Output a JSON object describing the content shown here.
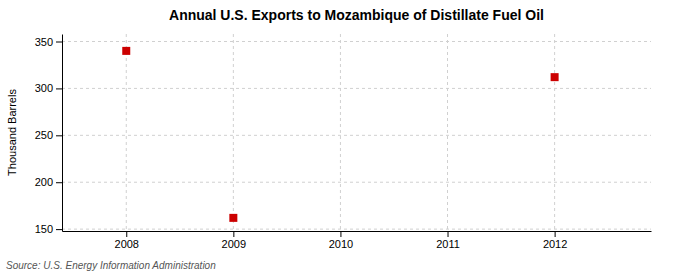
{
  "chart_data": {
    "type": "scatter",
    "title": "Annual U.S. Exports to Mozambique of Distillate Fuel Oil",
    "ylabel": "Thousand Barrels",
    "source": "Source: U.S. Energy Information Administration",
    "x": [
      2008,
      2009,
      2012
    ],
    "values": [
      340,
      162,
      312
    ],
    "xlim": [
      2007.4,
      2012.9
    ],
    "ylim": [
      148,
      358
    ],
    "xticks": [
      2008,
      2009,
      2010,
      2011,
      2012
    ],
    "yticks": [
      150,
      200,
      250,
      300,
      350
    ],
    "color": "#cc0000",
    "marker": "square",
    "grid": true
  }
}
